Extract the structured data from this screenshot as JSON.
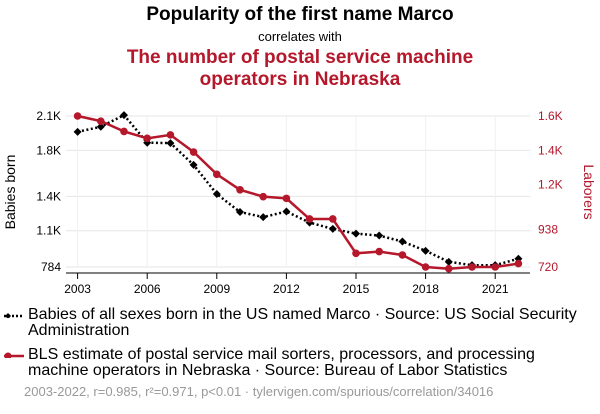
{
  "header": {
    "title": "Popularity of the first name Marco",
    "subtitle": "correlates with",
    "title2_line1": "The number of postal service machine",
    "title2_line2": "operators in Nebraska"
  },
  "colors": {
    "series1": "#000000",
    "series2": "#b5172b",
    "muted": "#999999"
  },
  "chart_data": {
    "type": "line",
    "x": [
      2003,
      2004,
      2005,
      2006,
      2007,
      2008,
      2009,
      2010,
      2011,
      2012,
      2013,
      2014,
      2015,
      2016,
      2017,
      2018,
      2019,
      2020,
      2021,
      2022
    ],
    "series": [
      {
        "name": "Babies of all sexes born in the US named Marco",
        "axis": "left",
        "style": "dotted",
        "marker": "diamond",
        "values": [
          1962,
          2006,
          2108,
          1867,
          1864,
          1674,
          1420,
          1263,
          1219,
          1268,
          1171,
          1116,
          1075,
          1058,
          1006,
          925,
          829,
          800,
          800,
          856
        ]
      },
      {
        "name": "BLS estimate of postal service mail sorters, processors, and processing machine operators in Nebraska",
        "axis": "right",
        "style": "solid",
        "marker": "circle",
        "values": [
          1600,
          1570,
          1510,
          1470,
          1490,
          1390,
          1260,
          1170,
          1130,
          1120,
          1000,
          1000,
          800,
          810,
          790,
          720,
          710,
          720,
          720,
          740
        ]
      }
    ],
    "xticks": [
      2003,
      2006,
      2009,
      2012,
      2015,
      2018,
      2021
    ],
    "xtick_labels": [
      "2003",
      "2006",
      "2009",
      "2012",
      "2015",
      "2018",
      "2021"
    ],
    "yleft": {
      "label": "Babies born",
      "ticks": [
        784,
        1100,
        1400,
        1800,
        2100
      ],
      "tick_labels": [
        "784",
        "1.1K",
        "1.4K",
        "1.8K",
        "2.1K"
      ],
      "lim": [
        784,
        2100
      ]
    },
    "yright": {
      "label": "Laborers",
      "ticks": [
        720,
        938,
        1200,
        1400,
        1600
      ],
      "tick_labels": [
        "720",
        "938",
        "1.2K",
        "1.4K",
        "1.6K"
      ],
      "lim": [
        720,
        1600
      ]
    },
    "xlim": [
      2002.5,
      2022.5
    ],
    "grid": true
  },
  "legend": {
    "item1": "Babies of all sexes born in the US named Marco · Source: US Social Security Administration",
    "item2": "BLS estimate of postal service mail sorters, processors, and processing machine operators in Nebraska · Source: Bureau of Labor Statistics"
  },
  "footer": "2003-2022, r=0.985, r²=0.971, p<0.01 · tylervigen.com/spurious/correlation/34016"
}
